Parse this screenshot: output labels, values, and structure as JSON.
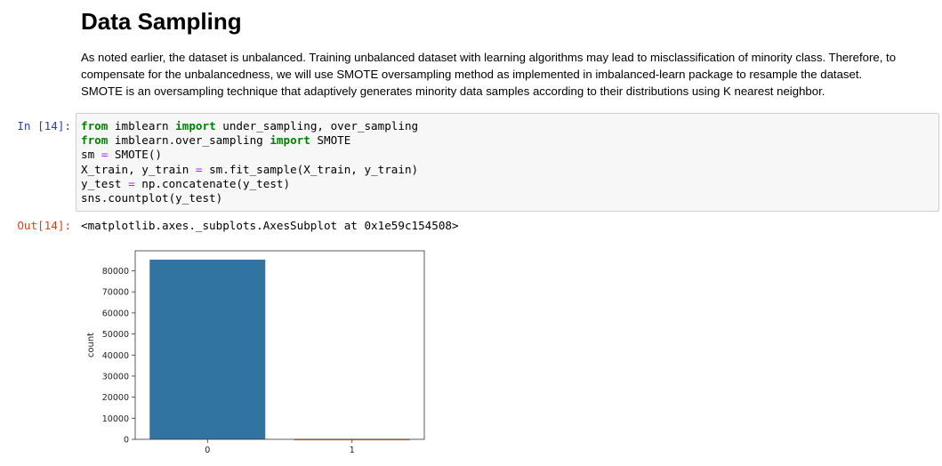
{
  "markdown": {
    "title": "Data Sampling",
    "lines": [
      "As noted earlier, the dataset is unbalanced. Training unbalanced dataset with learning algorithms may lead to misclassification of minority class. Therefore, to",
      "compensate for the unbalancedness, we will use SMOTE oversampling method as implemented in imbalanced-learn package to resample the dataset.",
      "SMOTE is an oversampling technique that adaptively generates minority data samples according to their distributions using K nearest neighbor."
    ]
  },
  "code_cell": {
    "in_prompt": "In [14]:",
    "out_prompt": "Out[14]:",
    "lines": [
      [
        {
          "t": "from",
          "c": "kw"
        },
        {
          "t": " imblearn "
        },
        {
          "t": "import",
          "c": "kw"
        },
        {
          "t": " under_sampling, over_sampling"
        }
      ],
      [
        {
          "t": "from",
          "c": "kw"
        },
        {
          "t": " imblearn.over_sampling "
        },
        {
          "t": "import",
          "c": "kw"
        },
        {
          "t": " SMOTE"
        }
      ],
      [
        {
          "t": "sm "
        },
        {
          "t": "=",
          "c": "op"
        },
        {
          "t": " SMOTE()"
        }
      ],
      [
        {
          "t": "X_train, y_train "
        },
        {
          "t": "=",
          "c": "op"
        },
        {
          "t": " sm.fit_sample(X_train, y_train)"
        }
      ],
      [
        {
          "t": "y_test "
        },
        {
          "t": "=",
          "c": "op"
        },
        {
          "t": " np.concatenate(y_test)"
        }
      ],
      [
        {
          "t": "sns.countplot(y_test)"
        }
      ]
    ],
    "output_text": "<matplotlib.axes._subplots.AxesSubplot at 0x1e59c154508>"
  },
  "chart_data": {
    "type": "bar",
    "categories": [
      "0",
      "1"
    ],
    "values": [
      85300,
      150
    ],
    "colors": [
      "#3274a1",
      "#e1812c"
    ],
    "xlabel": "",
    "ylabel": "count",
    "ylim": [
      0,
      89500
    ],
    "yticks": [
      0,
      10000,
      20000,
      30000,
      40000,
      50000,
      60000,
      70000,
      80000
    ],
    "grid": false
  }
}
